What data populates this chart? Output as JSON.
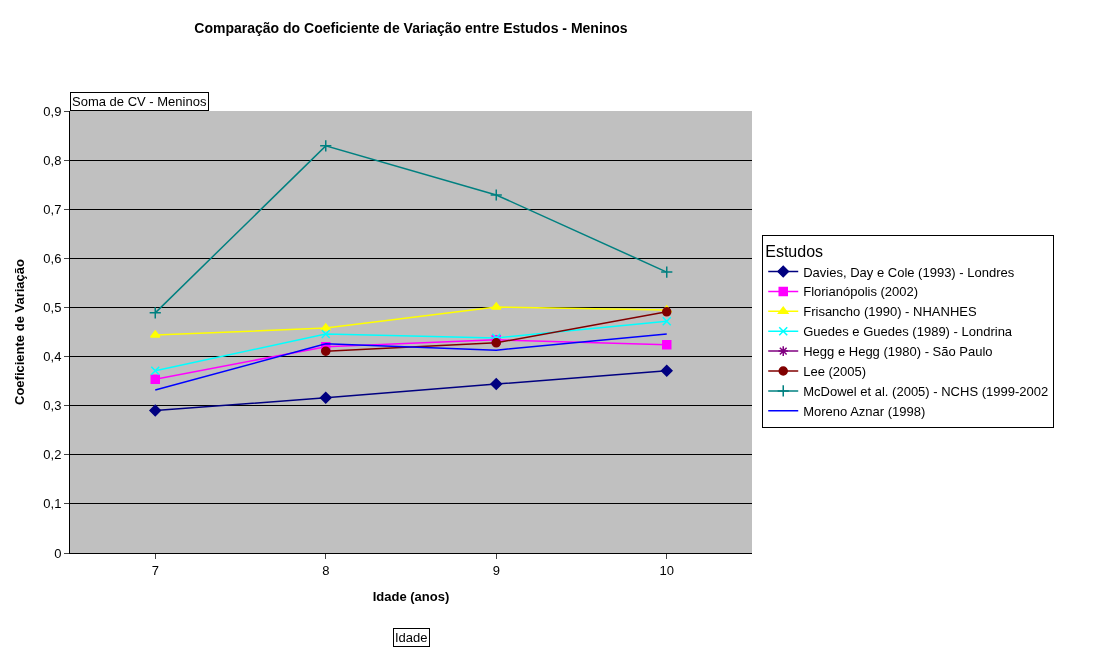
{
  "chart_data": {
    "type": "line",
    "title": "Comparação do Coeficiente de Variação entre Estudos - Meninos",
    "xlabel": "Idade (anos)",
    "ylabel": "Coeficiente de Variação",
    "legend_title": "Estudos",
    "annotations": [
      "Soma de CV - Meninos",
      "Idade"
    ],
    "categories": [
      "7",
      "8",
      "9",
      "10"
    ],
    "ylim": [
      0,
      0.9
    ],
    "yticks": [
      {
        "value": 0,
        "label": "0"
      },
      {
        "value": 0.1,
        "label": "0,1"
      },
      {
        "value": 0.2,
        "label": "0,2"
      },
      {
        "value": 0.3,
        "label": "0,3"
      },
      {
        "value": 0.4,
        "label": "0,4"
      },
      {
        "value": 0.5,
        "label": "0,5"
      },
      {
        "value": 0.6,
        "label": "0,6"
      },
      {
        "value": 0.7,
        "label": "0,7"
      },
      {
        "value": 0.8,
        "label": "0,8"
      },
      {
        "value": 0.9,
        "label": "0,9"
      }
    ],
    "grid": "y",
    "legend": "right",
    "series": [
      {
        "name": "Davies, Day e Cole (1993) - Londres",
        "color": "#000080",
        "marker": "diamond",
        "values": [
          0.29,
          0.316,
          0.344,
          0.371
        ]
      },
      {
        "name": "Florianópolis (2002)",
        "color": "#ff00ff",
        "marker": "square",
        "values": [
          0.354,
          0.42,
          0.434,
          0.424
        ]
      },
      {
        "name": "Frisancho (1990) - NHANHES",
        "color": "#ffff00",
        "marker": "triangle",
        "values": [
          0.444,
          0.458,
          0.501,
          0.495
        ]
      },
      {
        "name": "Guedes e Guedes (1989) - Londrina",
        "color": "#00ffff",
        "marker": "x",
        "values": [
          0.371,
          0.446,
          0.438,
          0.472
        ]
      },
      {
        "name": "Hegg e Hegg (1980) - São Paulo",
        "color": "#800080",
        "marker": "star",
        "values": [
          null,
          null,
          null,
          null
        ]
      },
      {
        "name": "Lee (2005)",
        "color": "#800000",
        "marker": "circle",
        "values": [
          null,
          0.411,
          0.428,
          0.491
        ]
      },
      {
        "name": "McDowel et al. (2005) - NCHS (1999-2002",
        "color": "#008080",
        "marker": "cross",
        "values": [
          0.489,
          0.829,
          0.729,
          0.572
        ]
      },
      {
        "name": "Moreno Aznar (1998)",
        "color": "#0000ff",
        "marker": "none",
        "values": [
          0.332,
          0.426,
          0.413,
          0.446
        ]
      }
    ]
  }
}
